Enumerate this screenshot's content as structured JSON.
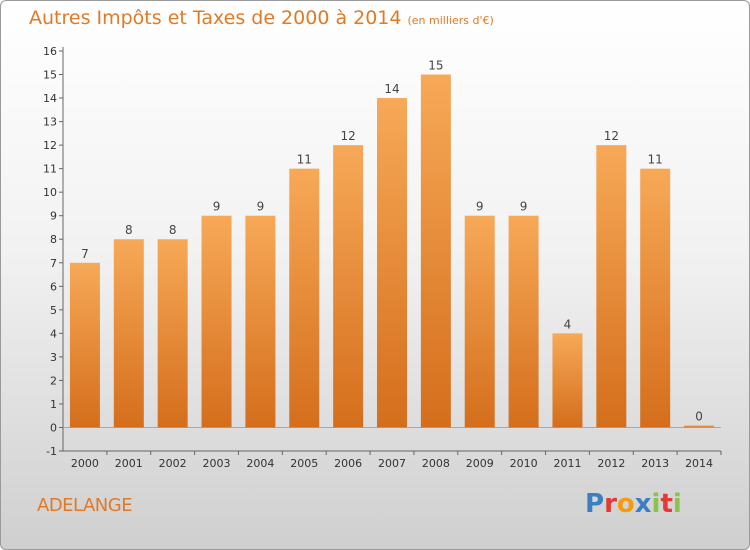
{
  "title": "Autres Impôts et Taxes de 2000 à 2014",
  "unit_label": "(en milliers d'€)",
  "commune": "ADELANGE",
  "logo": {
    "text": "Proxiti",
    "colors": [
      "#3a7fc1",
      "#e53935",
      "#f39c12",
      "#3a7fc1",
      "#8bc34a",
      "#e53935",
      "#8bc34a"
    ]
  },
  "chart_data": {
    "type": "bar",
    "title": "Autres Impôts et Taxes de 2000 à 2014",
    "subtitle": "(en milliers d'€)",
    "categories": [
      "2000",
      "2001",
      "2002",
      "2003",
      "2004",
      "2005",
      "2006",
      "2007",
      "2008",
      "2009",
      "2010",
      "2011",
      "2012",
      "2013",
      "2014"
    ],
    "values": [
      7,
      8,
      8,
      9,
      9,
      11,
      12,
      14,
      15,
      9,
      9,
      4,
      12,
      11,
      0
    ],
    "data_labels": [
      "7",
      "8",
      "8",
      "9",
      "9",
      "11",
      "12",
      "14",
      "15",
      "9",
      "9",
      "4",
      "12",
      "11",
      "0"
    ],
    "yticks": [
      -1,
      0,
      1,
      2,
      3,
      4,
      5,
      6,
      7,
      8,
      9,
      10,
      11,
      12,
      13,
      14,
      15,
      16
    ],
    "ylim": [
      -1,
      16
    ],
    "grid": false,
    "bar_color": "#f29a45"
  }
}
